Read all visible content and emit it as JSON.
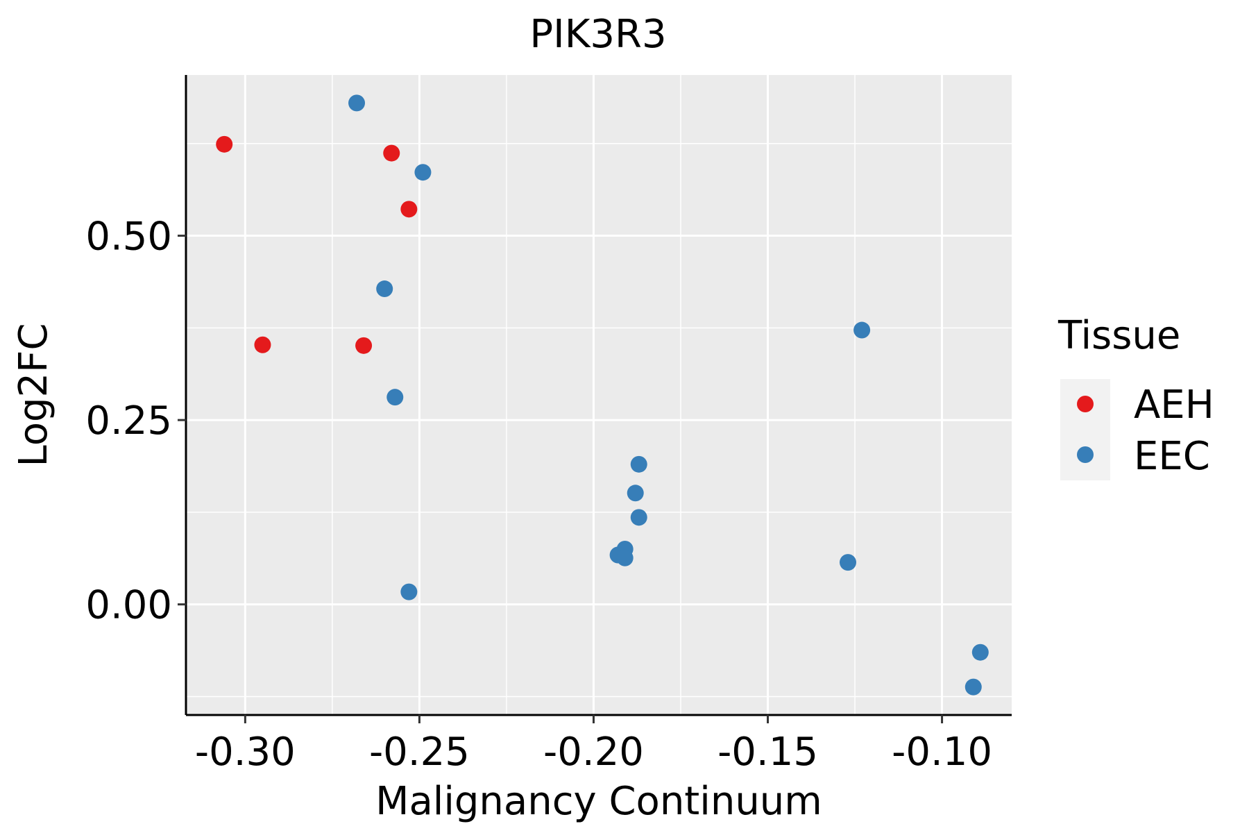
{
  "chart_data": {
    "type": "scatter",
    "title": "PIK3R3",
    "xlabel": "Malignancy Continuum",
    "ylabel": "Log2FC",
    "xlim": [
      -0.317,
      -0.08
    ],
    "ylim": [
      -0.15,
      0.718
    ],
    "x_ticks": [
      -0.3,
      -0.25,
      -0.2,
      -0.15,
      -0.1
    ],
    "x_tick_labels": [
      "-0.30",
      "-0.25",
      "-0.20",
      "-0.15",
      "-0.10"
    ],
    "y_ticks": [
      0.0,
      0.25,
      0.5
    ],
    "y_tick_labels": [
      "0.00",
      "0.25",
      "0.50"
    ],
    "grid": true,
    "legend": {
      "title": "Tissue",
      "position": "right",
      "entries": [
        {
          "name": "AEH",
          "color": "#E41A1C"
        },
        {
          "name": "EEC",
          "color": "#377EB8"
        }
      ]
    },
    "series": [
      {
        "name": "AEH",
        "color": "#E41A1C",
        "points": [
          {
            "x": -0.306,
            "y": 0.624
          },
          {
            "x": -0.258,
            "y": 0.612
          },
          {
            "x": -0.253,
            "y": 0.536
          },
          {
            "x": -0.295,
            "y": 0.352
          },
          {
            "x": -0.266,
            "y": 0.351
          }
        ]
      },
      {
        "name": "EEC",
        "color": "#377EB8",
        "points": [
          {
            "x": -0.268,
            "y": 0.68
          },
          {
            "x": -0.249,
            "y": 0.586
          },
          {
            "x": -0.26,
            "y": 0.428
          },
          {
            "x": -0.257,
            "y": 0.281
          },
          {
            "x": -0.253,
            "y": 0.017
          },
          {
            "x": -0.187,
            "y": 0.19
          },
          {
            "x": -0.188,
            "y": 0.151
          },
          {
            "x": -0.187,
            "y": 0.118
          },
          {
            "x": -0.191,
            "y": 0.075
          },
          {
            "x": -0.193,
            "y": 0.067
          },
          {
            "x": -0.191,
            "y": 0.063
          },
          {
            "x": -0.123,
            "y": 0.372
          },
          {
            "x": -0.127,
            "y": 0.057
          },
          {
            "x": -0.089,
            "y": -0.065
          },
          {
            "x": -0.091,
            "y": -0.112
          }
        ]
      }
    ]
  }
}
